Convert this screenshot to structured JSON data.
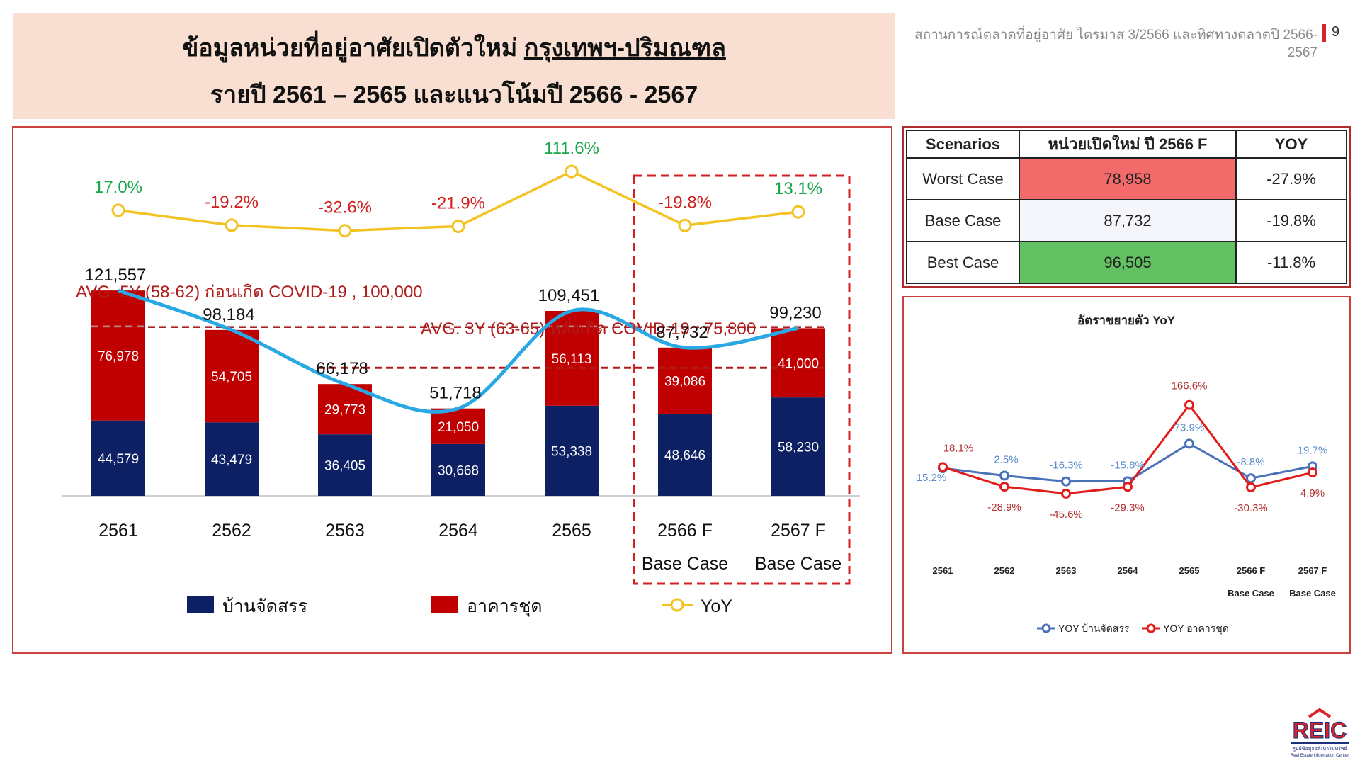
{
  "header": {
    "title_prefix": "ข้อมูลหน่วยที่อยู่อาศัยเปิดตัวใหม่ ",
    "title_highlight": "กรุงเทพฯ-ปริมณฑล",
    "subtitle": "รายปี 2561 – 2565 และแนวโน้มปี 2566 - 2567",
    "report_name": "สถานการณ์ตลาดที่อยู่อาศัย ไตรมาส 3/2566 และทิศทางตลาดปี 2566-2567",
    "page_number": "9"
  },
  "colors": {
    "house": "#0c2063",
    "condo": "#c00000",
    "yoy_line": "#f2c323",
    "trend_line": "#2aa8e3",
    "positive": "#1aa64a",
    "negative": "#d22020",
    "avg_line": "#b01c1c",
    "scenario_worst": "#f36a6a",
    "scenario_base": "#f4f6fb",
    "scenario_best": "#62c162"
  },
  "chart_data": [
    {
      "type": "bar",
      "stacked": true,
      "categories": [
        "2561",
        "2562",
        "2563",
        "2564",
        "2565",
        "2566 F",
        "2567 F"
      ],
      "category_notes": [
        "",
        "",
        "",
        "",
        "",
        "Base Case",
        "Base Case"
      ],
      "series": [
        {
          "name": "บ้านจัดสรร",
          "values": [
            44579,
            43479,
            36405,
            30668,
            53338,
            48646,
            58230
          ],
          "labels": [
            "44,579",
            "43,479",
            "36,405",
            "30,668",
            "53,338",
            "48,646",
            "58,230"
          ]
        },
        {
          "name": "อาคารชุด",
          "values": [
            76978,
            54705,
            29773,
            21050,
            56113,
            39086,
            41000
          ],
          "labels": [
            "76,978",
            "54,705",
            "29,773",
            "21,050",
            "56,113",
            "39,086",
            "41,000"
          ]
        }
      ],
      "totals": [
        121557,
        98184,
        66178,
        51718,
        109451,
        87732,
        99230
      ],
      "total_labels": [
        "121,557",
        "98,184",
        "66,178",
        "51,718",
        "109,451",
        "87,732",
        "99,230"
      ],
      "yoy": {
        "name": "YoY",
        "values": [
          17.0,
          -19.2,
          -32.6,
          -21.9,
          111.6,
          -19.8,
          13.1
        ],
        "labels": [
          "17.0%",
          "-19.2%",
          "-32.6%",
          "-21.9%",
          "111.6%",
          "-19.8%",
          "13.1%"
        ]
      },
      "reference_lines": [
        {
          "label": "AVG. 5Y (58-62) ก่อนเกิด COVID-19 ,  100,000",
          "value": 100000
        },
        {
          "label": "AVG. 3Y (63-65) หลังเกิด COVID-19 ,  75,800",
          "value": 75800
        }
      ],
      "highlight": [
        "2566 F",
        "2567 F"
      ],
      "ylim": [
        0,
        130000
      ]
    },
    {
      "type": "table",
      "columns": [
        "Scenarios",
        "หน่วยเปิดใหม่ ปี 2566 F",
        "YOY"
      ],
      "rows": [
        {
          "scenario": "Worst Case",
          "units": "78,958",
          "yoy": "-27.9%"
        },
        {
          "scenario": "Base Case",
          "units": "87,732",
          "yoy": "-19.8%"
        },
        {
          "scenario": "Best Case",
          "units": "96,505",
          "yoy": "-11.8%"
        }
      ]
    },
    {
      "type": "line",
      "title": "อัตราขยายตัว YoY",
      "categories": [
        "2561",
        "2562",
        "2563",
        "2564",
        "2565",
        "2566 F",
        "2567 F"
      ],
      "category_notes": [
        "",
        "",
        "",
        "",
        "",
        "Base Case",
        "Base Case"
      ],
      "series": [
        {
          "name": "YOY บ้านจัดสรร",
          "values": [
            15.2,
            -2.5,
            -16.3,
            -15.8,
            73.9,
            -8.8,
            19.7
          ],
          "labels": [
            "15.2%",
            "-2.5%",
            "-16.3%",
            "-15.8%",
            "73.9%",
            "-8.8%",
            "19.7%"
          ]
        },
        {
          "name": "YOY อาคารชุด",
          "values": [
            18.1,
            -28.9,
            -45.6,
            -29.3,
            166.6,
            -30.3,
            4.9
          ],
          "labels": [
            "18.1%",
            "-28.9%",
            "-45.6%",
            "-29.3%",
            "166.6%",
            "-30.3%",
            "4.9%"
          ]
        }
      ],
      "legend": "bottom"
    }
  ],
  "logo_text": "REIC",
  "logo_caption": "ศูนย์ข้อมูลอสังหาริมทรัพย์",
  "logo_caption_en": "Real Estate Information Center"
}
